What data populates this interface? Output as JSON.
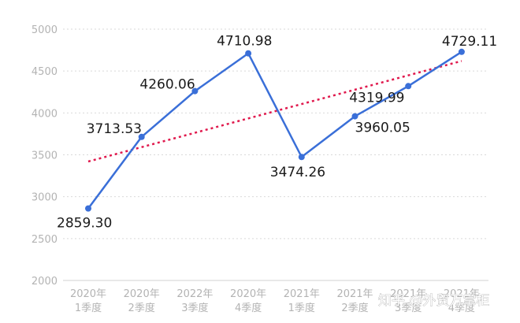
{
  "chart_data": {
    "type": "line",
    "title": "",
    "xlabel": "",
    "ylabel": "",
    "categories": [
      [
        "2020年",
        "1季度"
      ],
      [
        "2020年",
        "2季度"
      ],
      [
        "2022年",
        "3季度"
      ],
      [
        "2020年",
        "4季度"
      ],
      [
        "2021年",
        "1季度"
      ],
      [
        "2021年",
        "2季度"
      ],
      [
        "2021年",
        "3季度"
      ],
      [
        "2021年",
        "4季度"
      ]
    ],
    "series": [
      {
        "values": [
          2859.3,
          3713.53,
          4260.06,
          4710.98,
          3474.26,
          3960.05,
          4319.99,
          4729.11
        ],
        "labels": [
          "2859.30",
          "3713.53",
          "4260.06",
          "4710.98",
          "3474.26",
          "3960.05",
          "4319.99",
          "4729.11"
        ],
        "color": "#3a6fd8"
      }
    ],
    "trendline": {
      "style": "dotted",
      "color": "#e0194d",
      "start": 3420,
      "end": 4620
    },
    "yticks": [
      2000,
      2500,
      3000,
      3500,
      4000,
      4500,
      5000
    ],
    "ylim": [
      2000,
      5000
    ],
    "grid": true,
    "legend": "none"
  },
  "watermark": "知乎 @外贸万掌柜"
}
